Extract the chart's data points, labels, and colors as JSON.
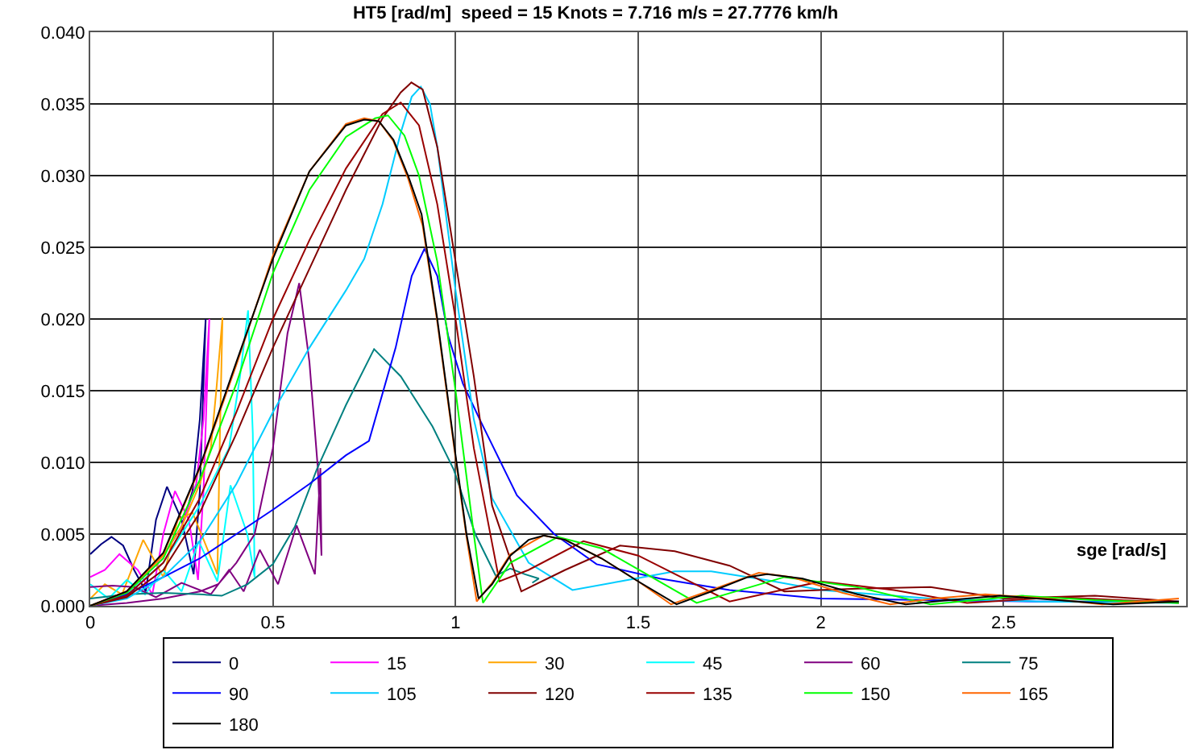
{
  "chart_data": {
    "type": "line",
    "title": "HT5 [rad/m]  speed = 15 Knots = 7.716 m/s = 27.7776 km/h",
    "xlabel": "sge [rad/s]",
    "xlim": [
      0,
      3
    ],
    "xticks": [
      0,
      0.5,
      1,
      1.5,
      2,
      2.5
    ],
    "ylim": [
      0,
      0.04
    ],
    "yticks": [
      {
        "value": 0,
        "label": "0.000"
      },
      {
        "value": 0.005,
        "label": "0.005"
      },
      {
        "value": 0.01,
        "label": "0.010"
      },
      {
        "value": 0.015,
        "label": "0.015"
      },
      {
        "value": 0.02,
        "label": "0.020"
      },
      {
        "value": 0.025,
        "label": "0.025"
      },
      {
        "value": 0.03,
        "label": "0.030"
      },
      {
        "value": 0.035,
        "label": "0.035"
      },
      {
        "value": 0.04,
        "label": "0.040"
      }
    ],
    "grid": true,
    "legend": "bottom",
    "marker": "none",
    "line_style": "solid",
    "series": [
      {
        "name": "0",
        "color": "#000080",
        "x": [
          0,
          0.1,
          0.2,
          0.25,
          0.28,
          0.3,
          0.316,
          0.3,
          0.283,
          0.25,
          0.21,
          0.18,
          0.152,
          0.12,
          0.09,
          0.058,
          0.03,
          0
        ],
        "values": [
          0,
          0.001,
          0.0035,
          0.0055,
          0.008,
          0.013,
          0.02,
          0.008,
          0.0022,
          0.006,
          0.0083,
          0.006,
          0.001,
          0.0025,
          0.0042,
          0.0048,
          0.0043,
          0.0036
        ]
      },
      {
        "name": "15",
        "color": "#ff00ff",
        "x": [
          0,
          0.1,
          0.2,
          0.25,
          0.29,
          0.31,
          0.326,
          0.31,
          0.295,
          0.27,
          0.232,
          0.2,
          0.17,
          0.13,
          0.08,
          0.04,
          0
        ],
        "values": [
          0,
          0.001,
          0.0035,
          0.0055,
          0.0085,
          0.013,
          0.02,
          0.008,
          0.0018,
          0.006,
          0.008,
          0.005,
          0.0008,
          0.0025,
          0.0036,
          0.0025,
          0.002
        ]
      },
      {
        "name": "30",
        "color": "#ffa500",
        "x": [
          0,
          0.1,
          0.2,
          0.25,
          0.3,
          0.33,
          0.345,
          0.362,
          0.355,
          0.348,
          0.32,
          0.28,
          0.239,
          0.2,
          0.145,
          0.087,
          0.04,
          0
        ],
        "values": [
          0,
          0.001,
          0.0035,
          0.0055,
          0.0085,
          0.011,
          0.015,
          0.0201,
          0.012,
          0.0022,
          0.004,
          0.0065,
          0.006,
          0.002,
          0.0046,
          0.0008,
          0.0015,
          0.0005
        ]
      },
      {
        "name": "45",
        "color": "#00ffff",
        "x": [
          0,
          0.1,
          0.2,
          0.3,
          0.35,
          0.38,
          0.41,
          0.432,
          0.445,
          0.45,
          0.43,
          0.384,
          0.348,
          0.297,
          0.25,
          0.2,
          0.15,
          0.1,
          0.05,
          0
        ],
        "values": [
          0,
          0.0008,
          0.003,
          0.007,
          0.0095,
          0.011,
          0.016,
          0.0206,
          0.012,
          0.002,
          0.005,
          0.0084,
          0.0017,
          0.0045,
          0.001,
          0.0025,
          0.0008,
          0.0018,
          0.0005,
          0.0015
        ]
      },
      {
        "name": "60",
        "color": "#800080",
        "x": [
          0,
          0.1,
          0.2,
          0.3,
          0.35,
          0.4,
          0.45,
          0.5,
          0.54,
          0.572,
          0.6,
          0.623,
          0.633,
          0.63,
          0.615,
          0.565,
          0.514,
          0.464,
          0.42,
          0.38,
          0.33,
          0.25,
          0.18,
          0.12,
          0.06,
          0
        ],
        "values": [
          0,
          0.0002,
          0.0005,
          0.001,
          0.0015,
          0.003,
          0.005,
          0.011,
          0.019,
          0.0225,
          0.017,
          0.0096,
          0.0035,
          0.0096,
          0.0022,
          0.0056,
          0.0015,
          0.0039,
          0.001,
          0.0025,
          0.0008,
          0.0016,
          0.0006,
          0.0013,
          0.0014,
          0.0013
        ]
      },
      {
        "name": "75",
        "color": "#008080",
        "x": [
          0,
          0.1,
          0.2,
          0.3,
          0.36,
          0.43,
          0.5,
          0.56,
          0.62,
          0.7,
          0.777,
          0.85,
          0.937,
          0.995,
          1.054,
          1.11,
          1.15,
          1.19,
          1.228,
          1.21
        ],
        "values": [
          0.0005,
          0.0008,
          0.0009,
          0.0008,
          0.0007,
          0.0015,
          0.0029,
          0.0055,
          0.0095,
          0.014,
          0.0179,
          0.016,
          0.0125,
          0.0095,
          0.005,
          0.0021,
          0.0026,
          0.0022,
          0.0019,
          0.0016
        ]
      },
      {
        "name": "90",
        "color": "#0000ff",
        "x": [
          0,
          0.1,
          0.2,
          0.3,
          0.4,
          0.5,
          0.6,
          0.7,
          0.763,
          0.836,
          0.88,
          0.915,
          0.95,
          0.98,
          1.02,
          1.068,
          1.168,
          1.27,
          1.386,
          1.56,
          1.75,
          2.0,
          2.3,
          2.6,
          2.98
        ],
        "values": [
          0,
          0.0008,
          0.002,
          0.0033,
          0.005,
          0.0067,
          0.0085,
          0.0105,
          0.0115,
          0.018,
          0.023,
          0.0249,
          0.023,
          0.0188,
          0.0155,
          0.0129,
          0.0077,
          0.005,
          0.0029,
          0.0019,
          0.0011,
          0.0005,
          0.0004,
          0.0003,
          0.0003
        ]
      },
      {
        "name": "105",
        "color": "#00ccff",
        "x": [
          0,
          0.1,
          0.2,
          0.3,
          0.4,
          0.5,
          0.6,
          0.7,
          0.75,
          0.8,
          0.85,
          0.88,
          0.905,
          0.93,
          0.95,
          1.0,
          1.05,
          1.1,
          1.2,
          1.32,
          1.45,
          1.6,
          1.7,
          1.85,
          2.0,
          2.3,
          2.6,
          2.98
        ],
        "values": [
          0,
          0.0005,
          0.002,
          0.0045,
          0.0085,
          0.0135,
          0.018,
          0.022,
          0.0242,
          0.028,
          0.033,
          0.0355,
          0.0362,
          0.035,
          0.032,
          0.022,
          0.013,
          0.0075,
          0.003,
          0.0011,
          0.0017,
          0.0024,
          0.0024,
          0.0018,
          0.0011,
          0.0005,
          0.0003,
          0.0002
        ]
      },
      {
        "name": "120",
        "color": "#800000",
        "x": [
          0,
          0.1,
          0.2,
          0.3,
          0.4,
          0.5,
          0.6,
          0.7,
          0.8,
          0.85,
          0.879,
          0.91,
          0.95,
          1.0,
          1.05,
          1.1,
          1.18,
          1.3,
          1.45,
          1.6,
          1.75,
          1.9,
          2.1,
          2.3,
          2.5,
          2.75,
          2.98
        ],
        "values": [
          0,
          0.0006,
          0.0025,
          0.0065,
          0.012,
          0.018,
          0.0235,
          0.029,
          0.034,
          0.0358,
          0.0365,
          0.036,
          0.032,
          0.024,
          0.016,
          0.007,
          0.001,
          0.0025,
          0.0042,
          0.0038,
          0.0028,
          0.001,
          0.0012,
          0.0013,
          0.0005,
          0.0007,
          0.0003
        ]
      },
      {
        "name": "135",
        "color": "#990000",
        "x": [
          0,
          0.1,
          0.2,
          0.3,
          0.4,
          0.5,
          0.6,
          0.7,
          0.8,
          0.85,
          0.9,
          0.95,
          1.0,
          1.05,
          1.12,
          1.2,
          1.35,
          1.5,
          1.75,
          2.0,
          2.2,
          2.4,
          2.65,
          2.98
        ],
        "values": [
          0,
          0.0007,
          0.003,
          0.0075,
          0.0135,
          0.02,
          0.0255,
          0.0305,
          0.0343,
          0.0351,
          0.0335,
          0.028,
          0.02,
          0.011,
          0.0017,
          0.0025,
          0.0045,
          0.0035,
          0.0003,
          0.0017,
          0.0011,
          0.0002,
          0.0006,
          0.0002
        ]
      },
      {
        "name": "150",
        "color": "#00ff00",
        "x": [
          0,
          0.1,
          0.2,
          0.3,
          0.4,
          0.5,
          0.6,
          0.7,
          0.78,
          0.815,
          0.86,
          0.9,
          0.95,
          1.0,
          1.05,
          1.075,
          1.15,
          1.28,
          1.4,
          1.66,
          1.9,
          2.1,
          2.3,
          2.55,
          2.75,
          2.98
        ],
        "values": [
          0,
          0.0009,
          0.0033,
          0.0088,
          0.0155,
          0.0232,
          0.029,
          0.0327,
          0.034,
          0.0342,
          0.0328,
          0.03,
          0.024,
          0.015,
          0.005,
          0.0002,
          0.003,
          0.0048,
          0.004,
          0.0002,
          0.002,
          0.0013,
          0.0001,
          0.0007,
          0.0004,
          0.0002
        ]
      },
      {
        "name": "165",
        "color": "#ff6600",
        "x": [
          0,
          0.1,
          0.2,
          0.3,
          0.4,
          0.5,
          0.6,
          0.7,
          0.75,
          0.79,
          0.83,
          0.87,
          0.91,
          0.95,
          1.0,
          1.03,
          1.058,
          1.1,
          1.15,
          1.24,
          1.3,
          1.4,
          1.5,
          1.59,
          1.7,
          1.83,
          1.92,
          2.06,
          2.19,
          2.31,
          2.45,
          2.62,
          2.77,
          2.98
        ],
        "values": [
          0,
          0.001,
          0.0036,
          0.0096,
          0.0168,
          0.0244,
          0.0303,
          0.0336,
          0.034,
          0.0338,
          0.0324,
          0.0298,
          0.0265,
          0.0198,
          0.0103,
          0.0048,
          0.0003,
          0.0016,
          0.0036,
          0.0049,
          0.0046,
          0.0033,
          0.0017,
          0.0001,
          0.0011,
          0.0023,
          0.002,
          0.0009,
          0.0001,
          0.0005,
          0.0008,
          0.0005,
          0.0001,
          0.0005
        ]
      },
      {
        "name": "180",
        "color": "#000000",
        "x": [
          0,
          0.1,
          0.2,
          0.3,
          0.4,
          0.5,
          0.6,
          0.7,
          0.75,
          0.79,
          0.83,
          0.87,
          0.907,
          0.95,
          1.0,
          1.03,
          1.063,
          1.1,
          1.15,
          1.2,
          1.242,
          1.3,
          1.4,
          1.5,
          1.605,
          1.7,
          1.8,
          1.853,
          1.95,
          2.1,
          2.232,
          2.35,
          2.49,
          2.65,
          2.8,
          2.98
        ],
        "values": [
          0,
          0.001,
          0.0037,
          0.0097,
          0.017,
          0.0242,
          0.0303,
          0.0335,
          0.0339,
          0.0338,
          0.0325,
          0.03,
          0.0273,
          0.02,
          0.0105,
          0.005,
          0.0005,
          0.0015,
          0.0035,
          0.0046,
          0.0049,
          0.0046,
          0.0033,
          0.0017,
          0.0001,
          0.001,
          0.002,
          0.0022,
          0.0019,
          0.0008,
          0.0001,
          0.0004,
          0.0007,
          0.0004,
          0.0001,
          0.0003
        ]
      }
    ]
  }
}
